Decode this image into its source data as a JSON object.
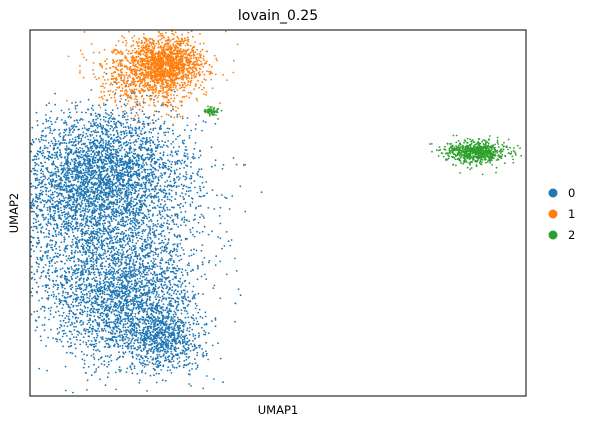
{
  "chart_data": {
    "type": "scatter",
    "title": "lovain_0.25",
    "xlabel": "UMAP1",
    "ylabel": "UMAP2",
    "legend_position": "right",
    "grid": false,
    "x_ticks_visible": false,
    "y_ticks_visible": false,
    "series": [
      {
        "name": "0",
        "color": "#1f77b4",
        "clusters": [
          {
            "center": [
              2.8,
              4.0
            ],
            "spread": [
              1.2,
              0.9
            ],
            "weight": 0.15
          },
          {
            "center": [
              3.0,
              2.5
            ],
            "spread": [
              1.5,
              1.2
            ],
            "weight": 0.15
          },
          {
            "center": [
              2.2,
              3.0
            ],
            "spread": [
              1.0,
              1.0
            ],
            "weight": 0.12
          },
          {
            "center": [
              4.0,
              3.5
            ],
            "spread": [
              1.0,
              1.1
            ],
            "weight": 0.13
          },
          {
            "center": [
              3.0,
              0.5
            ],
            "spread": [
              1.3,
              1.1
            ],
            "weight": 0.15
          },
          {
            "center": [
              3.5,
              -1.0
            ],
            "spread": [
              1.1,
              0.9
            ],
            "weight": 0.12
          },
          {
            "center": [
              4.2,
              -0.2
            ],
            "spread": [
              0.9,
              1.0
            ],
            "weight": 0.1
          },
          {
            "center": [
              4.9,
              -1.7
            ],
            "spread": [
              0.6,
              0.5
            ],
            "weight": 0.08
          }
        ]
      },
      {
        "name": "1",
        "color": "#ff7f0e",
        "clusters": [
          {
            "center": [
              4.5,
              6.8
            ],
            "spread": [
              0.8,
              0.55
            ],
            "weight": 0.55
          },
          {
            "center": [
              5.0,
              7.2
            ],
            "spread": [
              0.5,
              0.4
            ],
            "weight": 0.45
          }
        ]
      },
      {
        "name": "2",
        "color": "#2ca02c",
        "clusters": [
          {
            "center": [
              14.3,
              4.3
            ],
            "spread": [
              0.45,
              0.18
            ],
            "weight": 0.92
          },
          {
            "center": [
              6.3,
              5.6
            ],
            "spread": [
              0.12,
              0.08
            ],
            "weight": 0.08
          }
        ]
      }
    ],
    "legend": [
      {
        "label": "0",
        "color": "#1f77b4"
      },
      {
        "label": "1",
        "color": "#ff7f0e"
      },
      {
        "label": "2",
        "color": "#2ca02c"
      }
    ]
  }
}
